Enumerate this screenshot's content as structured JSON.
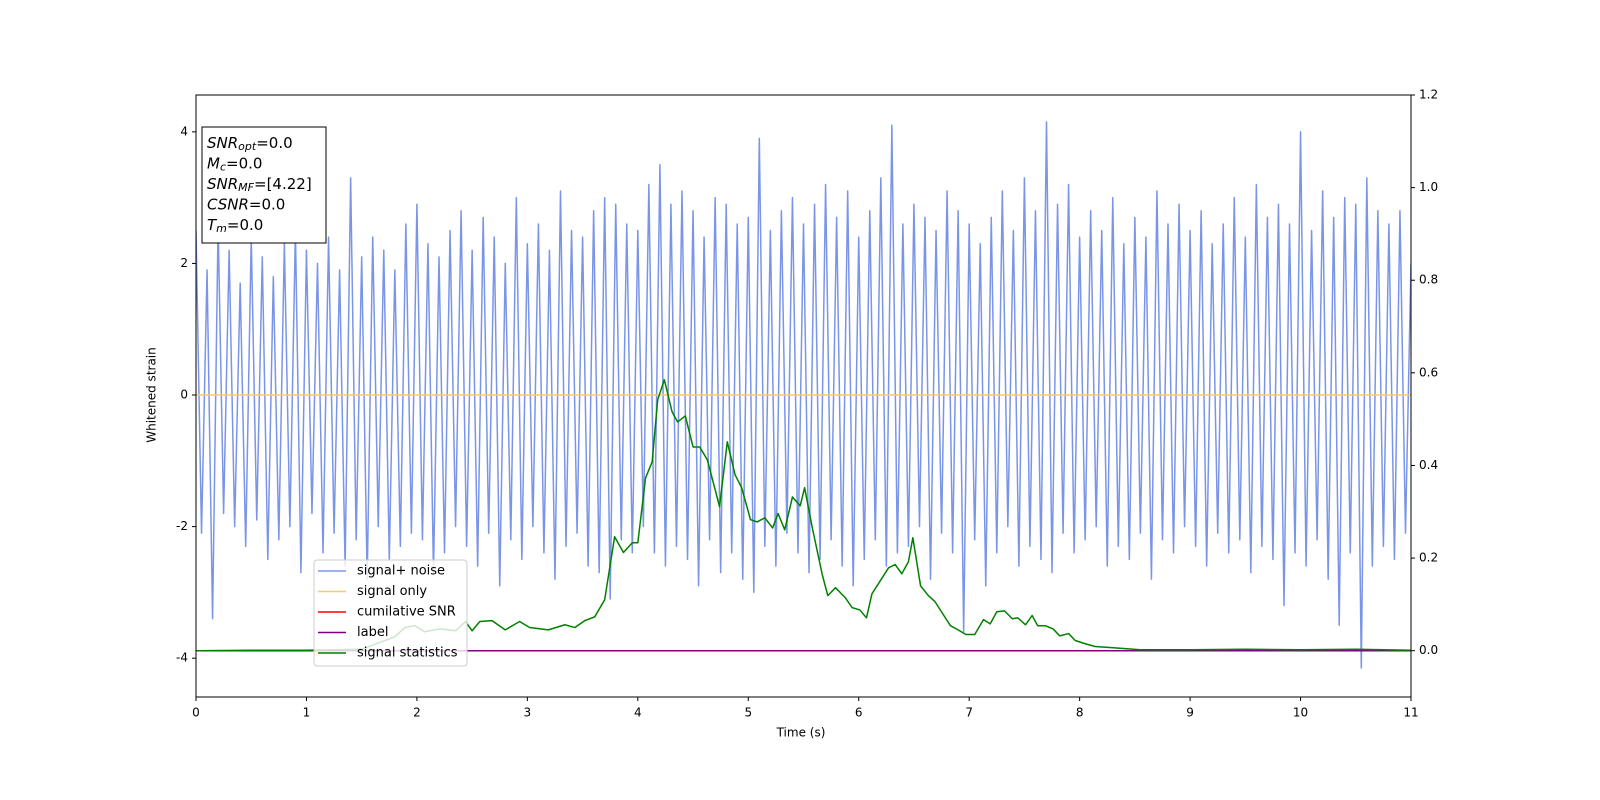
{
  "chart_data": {
    "type": "line",
    "xlabel": "Time (s)",
    "ylabel": "Whitened strain",
    "xlim": [
      0,
      11
    ],
    "xticks": [
      0,
      1,
      2,
      3,
      4,
      5,
      6,
      7,
      8,
      9,
      10,
      11
    ],
    "ylim": [
      -4.59,
      4.56
    ],
    "yticks": [
      -4,
      -2,
      0,
      2,
      4
    ],
    "y2lim": [
      -0.1,
      1.2
    ],
    "y2ticks": [
      {
        "value": 0,
        "label": "0.0"
      },
      0.2,
      0.4,
      0.6,
      0.8,
      {
        "value": 1,
        "label": "1.0"
      },
      1.2
    ],
    "grid": false,
    "legend_loc": "lower left",
    "annotations": [
      {
        "symbol": "SNR",
        "subscript": "opt",
        "text": "=0.0"
      },
      {
        "symbol": "M",
        "subscript": "c",
        "text": "=0.0"
      },
      {
        "symbol": "SNR",
        "subscript": "MF",
        "text": "=[4.22]"
      },
      {
        "symbol": "CSNR",
        "text": "=0.0"
      },
      {
        "symbol": "T",
        "subscript": "m",
        "text": "=0.0"
      }
    ],
    "series": [
      {
        "name": "signal+ noise",
        "color": "#7a95e8",
        "x": [
          0,
          0.05,
          0.1,
          0.15,
          0.2,
          0.25,
          0.3,
          0.35,
          0.4,
          0.45,
          0.5,
          0.55,
          0.6,
          0.65,
          0.7,
          0.75,
          0.8,
          0.85,
          0.9,
          0.95,
          1,
          1.05,
          1.1,
          1.15,
          1.2,
          1.25,
          1.3,
          1.35,
          1.4,
          1.45,
          1.5,
          1.55,
          1.6,
          1.65,
          1.7,
          1.75,
          1.8,
          1.85,
          1.9,
          1.95,
          2,
          2.05,
          2.1,
          2.15,
          2.2,
          2.25,
          2.3,
          2.35,
          2.4,
          2.45,
          2.5,
          2.55,
          2.6,
          2.65,
          2.7,
          2.75,
          2.8,
          2.85,
          2.9,
          2.95,
          3,
          3.05,
          3.1,
          3.15,
          3.2,
          3.25,
          3.3,
          3.35,
          3.4,
          3.45,
          3.5,
          3.55,
          3.6,
          3.65,
          3.7,
          3.75,
          3.8,
          3.85,
          3.9,
          3.95,
          4,
          4.05,
          4.1,
          4.15,
          4.2,
          4.25,
          4.3,
          4.35,
          4.4,
          4.45,
          4.5,
          4.55,
          4.6,
          4.65,
          4.7,
          4.75,
          4.8,
          4.85,
          4.9,
          4.95,
          5,
          5.05,
          5.1,
          5.15,
          5.2,
          5.25,
          5.3,
          5.35,
          5.4,
          5.45,
          5.5,
          5.55,
          5.6,
          5.65,
          5.7,
          5.75,
          5.8,
          5.85,
          5.9,
          5.95,
          6,
          6.05,
          6.1,
          6.15,
          6.2,
          6.25,
          6.3,
          6.35,
          6.4,
          6.45,
          6.5,
          6.55,
          6.6,
          6.65,
          6.7,
          6.75,
          6.8,
          6.85,
          6.9,
          6.95,
          7,
          7.05,
          7.1,
          7.15,
          7.2,
          7.25,
          7.3,
          7.35,
          7.4,
          7.45,
          7.5,
          7.55,
          7.6,
          7.65,
          7.7,
          7.75,
          7.8,
          7.85,
          7.9,
          7.95,
          8,
          8.05,
          8.1,
          8.15,
          8.2,
          8.25,
          8.3,
          8.35,
          8.4,
          8.45,
          8.5,
          8.55,
          8.6,
          8.65,
          8.7,
          8.75,
          8.8,
          8.85,
          8.9,
          8.95,
          9,
          9.05,
          9.1,
          9.15,
          9.2,
          9.25,
          9.3,
          9.35,
          9.4,
          9.45,
          9.5,
          9.55,
          9.6,
          9.65,
          9.7,
          9.75,
          9.8,
          9.85,
          9.9,
          9.95,
          10,
          10.05,
          10.1,
          10.15,
          10.2,
          10.25,
          10.3,
          10.35,
          10.4,
          10.45,
          10.5,
          10.55,
          10.6,
          10.65,
          10.7,
          10.75,
          10.8,
          10.85,
          10.9,
          10.95,
          11
        ],
        "values": [
          2.5,
          -2.1,
          1.9,
          -3.4,
          2.6,
          -1.8,
          2.2,
          -2.0,
          1.7,
          -2.3,
          2.4,
          -1.9,
          2.1,
          -2.5,
          1.8,
          -2.2,
          2.3,
          -2.0,
          2.5,
          -2.7,
          2.2,
          -1.8,
          2.0,
          -2.4,
          2.4,
          -2.1,
          1.9,
          -2.6,
          3.3,
          -2.2,
          2.1,
          -2.8,
          2.4,
          -2.0,
          2.2,
          -2.5,
          1.9,
          -2.3,
          2.6,
          -2.1,
          2.9,
          -2.2,
          2.3,
          -2.7,
          2.1,
          -2.4,
          2.5,
          -2.0,
          2.8,
          -2.3,
          2.2,
          -2.6,
          2.7,
          -2.1,
          2.4,
          -2.9,
          2.0,
          -2.2,
          3.0,
          -2.5,
          2.3,
          -2.0,
          2.6,
          -2.4,
          2.2,
          -2.8,
          3.1,
          -2.3,
          2.5,
          -2.1,
          2.4,
          -2.6,
          2.8,
          -2.7,
          3.0,
          -3.1,
          2.9,
          -2.2,
          2.6,
          -2.4,
          2.5,
          -2.0,
          3.2,
          -2.4,
          3.5,
          -2.6,
          2.9,
          -2.3,
          3.1,
          -2.5,
          2.8,
          -2.9,
          2.4,
          -2.2,
          3.0,
          -2.7,
          2.9,
          -2.4,
          2.6,
          -2.8,
          2.7,
          -3.0,
          3.9,
          -2.3,
          2.5,
          -2.6,
          2.8,
          -2.1,
          3.0,
          -2.4,
          2.6,
          -2.7,
          2.9,
          -2.5,
          3.2,
          -2.2,
          2.7,
          -2.6,
          3.1,
          -2.9,
          2.4,
          -2.5,
          2.8,
          -2.2,
          3.3,
          -2.6,
          4.1,
          -2.4,
          2.6,
          -2.3,
          2.9,
          -2.0,
          2.7,
          -2.8,
          2.5,
          -2.1,
          3.1,
          -2.4,
          2.8,
          -3.6,
          2.6,
          -2.2,
          2.3,
          -2.9,
          2.7,
          -2.4,
          3.1,
          -2.0,
          2.5,
          -2.6,
          3.3,
          -2.3,
          2.8,
          -2.5,
          4.15,
          -2.7,
          2.9,
          -2.1,
          3.2,
          -2.4,
          2.4,
          -2.2,
          2.8,
          -2.0,
          2.5,
          -2.6,
          3.0,
          -2.3,
          2.3,
          -2.5,
          2.7,
          -2.1,
          2.4,
          -2.8,
          3.1,
          -2.2,
          2.6,
          -2.4,
          2.9,
          -2.0,
          2.5,
          -2.3,
          2.8,
          -2.6,
          2.3,
          -2.1,
          2.6,
          -2.4,
          3.0,
          -2.2,
          2.4,
          -2.7,
          3.2,
          -2.3,
          2.7,
          -2.5,
          2.9,
          -3.2,
          2.6,
          -2.4,
          4.0,
          -2.6,
          2.5,
          -2.2,
          3.1,
          -2.8,
          2.7,
          -3.5,
          3.0,
          -2.4,
          2.9,
          -4.15,
          3.3,
          -2.6,
          2.8,
          -2.3,
          2.6,
          -2.5,
          2.8,
          -2.1,
          2.0
        ]
      },
      {
        "name": "signal only",
        "color": "#fcc76f",
        "x": [
          0,
          11
        ],
        "values": [
          0,
          0
        ]
      },
      {
        "name": "cumilative SNR",
        "color": "#ff0000",
        "axis": "y2",
        "x": [
          0,
          11
        ],
        "values": [
          0,
          0
        ]
      },
      {
        "name": "label",
        "color": "#800080",
        "axis": "y2",
        "x": [
          0,
          11
        ],
        "values": [
          0,
          0
        ]
      },
      {
        "name": "signal statistics",
        "color": "#008000",
        "axis": "y2",
        "x": [
          0,
          0.5,
          1,
          1.5,
          1.8,
          1.89,
          1.98,
          2.07,
          2.21,
          2.35,
          2.44,
          2.5,
          2.57,
          2.68,
          2.8,
          2.93,
          3.02,
          3.19,
          3.34,
          3.43,
          3.52,
          3.61,
          3.7,
          3.79,
          3.87,
          3.95,
          4.0,
          4.07,
          4.13,
          4.18,
          4.24,
          4.31,
          4.36,
          4.43,
          4.5,
          4.56,
          4.63,
          4.74,
          4.81,
          4.88,
          4.94,
          5.02,
          5.08,
          5.15,
          5.22,
          5.27,
          5.33,
          5.4,
          5.47,
          5.51,
          5.58,
          5.67,
          5.72,
          5.79,
          5.88,
          5.94,
          6.01,
          6.07,
          6.12,
          6.19,
          6.27,
          6.33,
          6.39,
          6.45,
          6.49,
          6.56,
          6.63,
          6.69,
          6.76,
          6.83,
          6.9,
          6.97,
          7.05,
          7.13,
          7.19,
          7.25,
          7.32,
          7.39,
          7.44,
          7.51,
          7.57,
          7.62,
          7.69,
          7.76,
          7.82,
          7.9,
          7.96,
          8.05,
          8.14,
          8.32,
          8.55,
          9.0,
          9.5,
          10.0,
          10.5,
          11
        ],
        "values": [
          0,
          0.001,
          0.001,
          0.003,
          0.03,
          0.05,
          0.054,
          0.041,
          0.047,
          0.043,
          0.063,
          0.043,
          0.063,
          0.065,
          0.045,
          0.063,
          0.05,
          0.045,
          0.056,
          0.05,
          0.065,
          0.073,
          0.11,
          0.246,
          0.212,
          0.233,
          0.233,
          0.373,
          0.408,
          0.542,
          0.585,
          0.516,
          0.494,
          0.507,
          0.44,
          0.44,
          0.412,
          0.311,
          0.451,
          0.38,
          0.352,
          0.283,
          0.278,
          0.287,
          0.265,
          0.296,
          0.261,
          0.332,
          0.313,
          0.352,
          0.265,
          0.164,
          0.119,
          0.136,
          0.114,
          0.093,
          0.088,
          0.071,
          0.123,
          0.149,
          0.179,
          0.186,
          0.166,
          0.192,
          0.244,
          0.14,
          0.119,
          0.106,
          0.08,
          0.054,
          0.045,
          0.035,
          0.035,
          0.067,
          0.058,
          0.084,
          0.086,
          0.069,
          0.071,
          0.056,
          0.076,
          0.054,
          0.054,
          0.047,
          0.032,
          0.037,
          0.022,
          0.015,
          0.009,
          0.006,
          0.002,
          0.002,
          0.003,
          0.002,
          0.003,
          0.001
        ]
      }
    ]
  }
}
